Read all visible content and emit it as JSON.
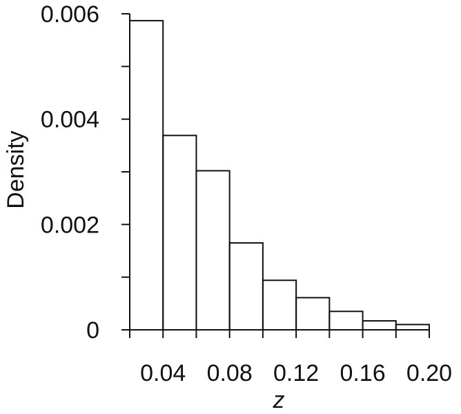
{
  "chart_data": {
    "type": "bar",
    "style": "step-histogram",
    "xlabel": "z",
    "ylabel": "Density",
    "xlim": [
      0.02,
      0.2
    ],
    "ylim": [
      0,
      0.006
    ],
    "grid": false,
    "x_ticks": [
      0.04,
      0.08,
      0.12,
      0.16,
      0.2
    ],
    "x_tick_labels": [
      "0.04",
      "0.08",
      "0.12",
      "0.16",
      "0.20"
    ],
    "x_minor_ticks": [
      0.02,
      0.06,
      0.1,
      0.14,
      0.18
    ],
    "y_ticks": [
      0,
      0.002,
      0.004,
      0.006
    ],
    "y_tick_labels": [
      "0",
      "0.002",
      "0.004",
      "0.006"
    ],
    "y_minor_ticks": [
      0.001,
      0.003,
      0.005
    ],
    "bins": [
      {
        "x0": 0.02,
        "x1": 0.04,
        "density": 0.00587
      },
      {
        "x0": 0.04,
        "x1": 0.06,
        "density": 0.00369
      },
      {
        "x0": 0.06,
        "x1": 0.08,
        "density": 0.00302
      },
      {
        "x0": 0.08,
        "x1": 0.1,
        "density": 0.00165
      },
      {
        "x0": 0.1,
        "x1": 0.12,
        "density": 0.00094
      },
      {
        "x0": 0.12,
        "x1": 0.14,
        "density": 0.00061
      },
      {
        "x0": 0.14,
        "x1": 0.16,
        "density": 0.00035
      },
      {
        "x0": 0.16,
        "x1": 0.18,
        "density": 0.00017
      },
      {
        "x0": 0.18,
        "x1": 0.2,
        "density": 0.0001
      }
    ],
    "colors": {
      "line": "#111111",
      "background": "#ffffff"
    }
  }
}
